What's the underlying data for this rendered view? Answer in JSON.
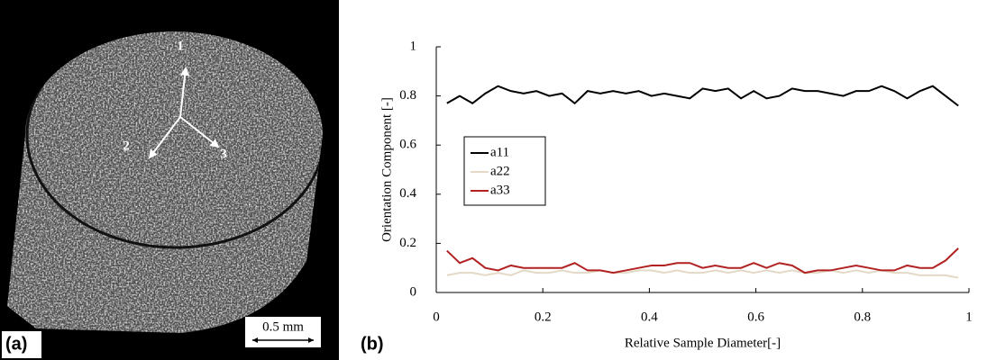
{
  "panel_a": {
    "label": "(a)",
    "direction_labels": [
      "1",
      "2",
      "3"
    ],
    "scale_bar": "0.5 mm"
  },
  "panel_b_label": "(b)",
  "chart_data": {
    "type": "line",
    "xlabel": "Relative Sample Diameter[-]",
    "ylabel": "Orientation Component [-]",
    "x": [
      0.02,
      0.044,
      0.068,
      0.092,
      0.116,
      0.14,
      0.164,
      0.188,
      0.212,
      0.236,
      0.26,
      0.284,
      0.308,
      0.332,
      0.356,
      0.38,
      0.404,
      0.428,
      0.452,
      0.476,
      0.5,
      0.524,
      0.548,
      0.572,
      0.596,
      0.62,
      0.644,
      0.668,
      0.692,
      0.716,
      0.74,
      0.764,
      0.788,
      0.812,
      0.836,
      0.86,
      0.884,
      0.908,
      0.932,
      0.956,
      0.98
    ],
    "series": [
      {
        "name": "a11",
        "color": "#000000",
        "values": [
          0.77,
          0.8,
          0.77,
          0.81,
          0.84,
          0.82,
          0.81,
          0.82,
          0.8,
          0.81,
          0.77,
          0.82,
          0.81,
          0.82,
          0.81,
          0.82,
          0.8,
          0.81,
          0.8,
          0.79,
          0.83,
          0.82,
          0.83,
          0.79,
          0.82,
          0.79,
          0.8,
          0.83,
          0.82,
          0.82,
          0.81,
          0.8,
          0.82,
          0.82,
          0.84,
          0.82,
          0.79,
          0.82,
          0.84,
          0.8,
          0.76
        ]
      },
      {
        "name": "a22",
        "color": "#e3d9c6",
        "values": [
          0.07,
          0.08,
          0.08,
          0.07,
          0.08,
          0.07,
          0.09,
          0.08,
          0.08,
          0.09,
          0.08,
          0.08,
          0.09,
          0.08,
          0.08,
          0.09,
          0.09,
          0.08,
          0.09,
          0.08,
          0.08,
          0.09,
          0.08,
          0.09,
          0.08,
          0.09,
          0.08,
          0.09,
          0.08,
          0.08,
          0.09,
          0.08,
          0.09,
          0.08,
          0.09,
          0.08,
          0.08,
          0.07,
          0.07,
          0.07,
          0.06
        ]
      },
      {
        "name": "a33",
        "color": "#b22222",
        "values": [
          0.17,
          0.12,
          0.14,
          0.1,
          0.09,
          0.11,
          0.1,
          0.1,
          0.1,
          0.1,
          0.12,
          0.09,
          0.09,
          0.08,
          0.09,
          0.1,
          0.11,
          0.11,
          0.12,
          0.12,
          0.1,
          0.11,
          0.1,
          0.1,
          0.12,
          0.1,
          0.12,
          0.11,
          0.08,
          0.09,
          0.09,
          0.1,
          0.11,
          0.1,
          0.09,
          0.09,
          0.11,
          0.1,
          0.1,
          0.13,
          0.18
        ]
      }
    ],
    "xlim": [
      0,
      1
    ],
    "xticks": [
      0,
      0.2,
      0.4,
      0.6,
      0.8,
      1
    ],
    "ylim": [
      0,
      1
    ],
    "yticks": [
      0,
      0.2,
      0.4,
      0.6,
      0.8,
      1
    ]
  }
}
